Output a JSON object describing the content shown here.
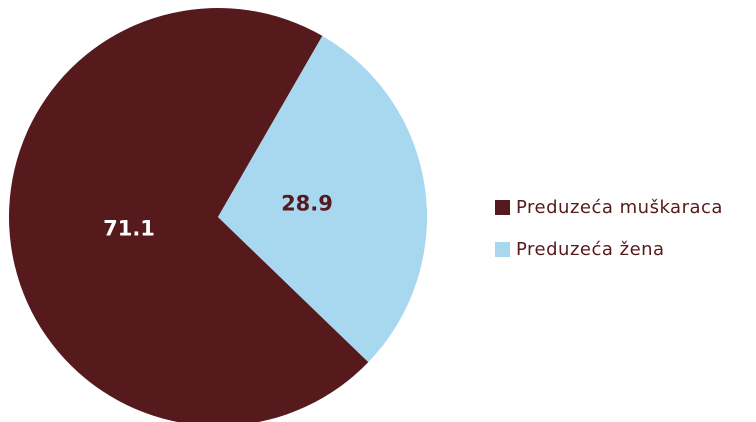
{
  "chart_data": {
    "type": "pie",
    "categories": [
      "Preduzeća muškaraca",
      "Preduzeća žena"
    ],
    "values": [
      71.1,
      28.9
    ],
    "colors": [
      "#561a1d",
      "#a8d8f0"
    ],
    "label_colors": [
      "#ffffff",
      "#561a1d"
    ]
  }
}
